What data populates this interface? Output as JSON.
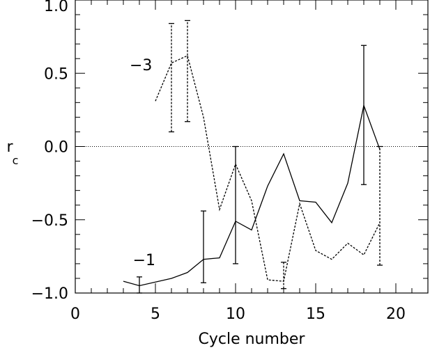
{
  "chart_data": {
    "type": "line",
    "xlabel": "Cycle number",
    "ylabel": "r",
    "ylabel_subscript": "c",
    "xlim": [
      0,
      22
    ],
    "ylim": [
      -1.0,
      1.0
    ],
    "x_ticks": [
      0,
      5,
      10,
      15,
      20
    ],
    "x_tick_labels": [
      "0",
      "5",
      "10",
      "15",
      "20"
    ],
    "y_ticks": [
      -1.0,
      -0.5,
      0.0,
      0.5,
      1.0
    ],
    "y_tick_labels": [
      "−1.0",
      "−0.5",
      "0.0",
      "0.5",
      "1.0"
    ],
    "zero_line": true,
    "series": [
      {
        "name": "−1",
        "style": "solid",
        "x": [
          3,
          4,
          6,
          7,
          8,
          9,
          10,
          11,
          12,
          13,
          14,
          15,
          16,
          17,
          18,
          19
        ],
        "y": [
          -0.92,
          -0.95,
          -0.9,
          -0.86,
          -0.77,
          -0.76,
          -0.51,
          -0.57,
          -0.27,
          -0.05,
          -0.37,
          -0.38,
          -0.52,
          -0.25,
          0.28,
          -0.02
        ],
        "error_bars": [
          {
            "x": 4,
            "low": -1.0,
            "high": -0.89
          },
          {
            "x": 8,
            "low": -0.93,
            "high": -0.44
          },
          {
            "x": 10,
            "low": -0.8,
            "high": 0.0
          },
          {
            "x": 18,
            "low": -0.26,
            "high": 0.69
          }
        ]
      },
      {
        "name": "−3",
        "style": "dashed",
        "x": [
          5,
          6,
          7,
          8,
          9,
          10,
          11,
          12,
          13,
          14,
          15,
          16,
          17,
          18,
          19
        ],
        "y": [
          0.31,
          0.57,
          0.62,
          0.2,
          -0.43,
          -0.12,
          -0.37,
          -0.91,
          -0.92,
          -0.39,
          -0.71,
          -0.77,
          -0.66,
          -0.74,
          -0.52
        ],
        "error_bars": [
          {
            "x": 6,
            "low": 0.1,
            "high": 0.84
          },
          {
            "x": 7,
            "low": 0.17,
            "high": 0.86
          },
          {
            "x": 13,
            "low": -0.97,
            "high": -0.79
          },
          {
            "x": 19,
            "low": -0.81,
            "high": 0.0
          }
        ]
      }
    ],
    "annotations": [
      {
        "text": "−3",
        "x": 4.8,
        "y": 0.52
      },
      {
        "text": "−1",
        "x": 5.0,
        "y": -0.81
      }
    ]
  }
}
